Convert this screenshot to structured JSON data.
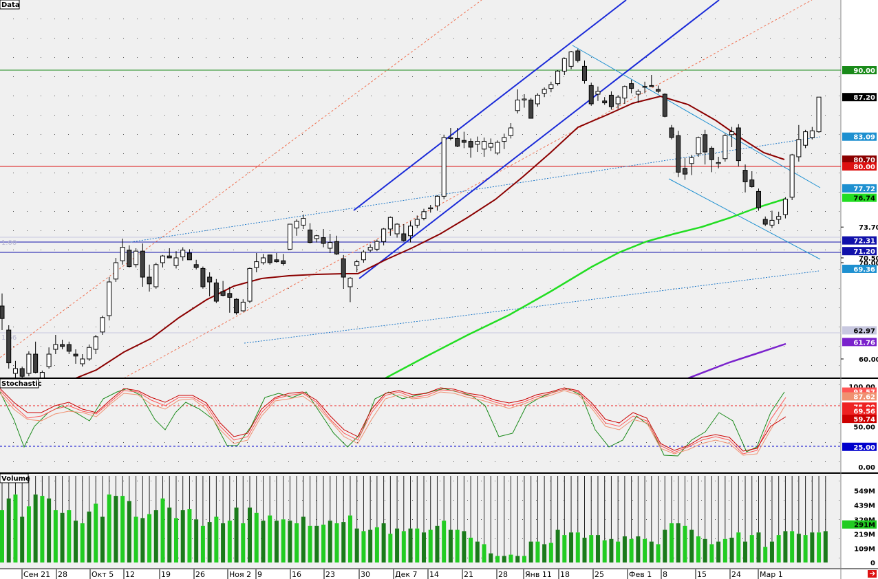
{
  "panels": {
    "price": {
      "title": "Data"
    },
    "stochastic": {
      "title": "Stochastic"
    },
    "volume": {
      "title": "Volume"
    }
  },
  "chart_data": {
    "type": "candlestick",
    "price_axis": {
      "ticks": [
        "90.00",
        "87.20",
        "83.09",
        "80.70",
        "80.00",
        "77.72",
        "76.74",
        "73.70",
        "72.31",
        "71.20",
        "70.50",
        "70.00",
        "69.36",
        "62.97",
        "61.76",
        "60.00"
      ],
      "badges": [
        {
          "label": "90.00",
          "value": 90.0,
          "bg": "#1a8a1a",
          "fg": "#ffffff"
        },
        {
          "label": "87.20",
          "value": 87.2,
          "bg": "#000000",
          "fg": "#ffffff"
        },
        {
          "label": "83.09",
          "value": 83.09,
          "bg": "#1e90d0",
          "fg": "#ffffff"
        },
        {
          "label": "80.70",
          "value": 80.7,
          "bg": "#8b0000",
          "fg": "#ffffff"
        },
        {
          "label": "80.00",
          "value": 80.0,
          "bg": "#dd1111",
          "fg": "#ffffff"
        },
        {
          "label": "77.72",
          "value": 77.72,
          "bg": "#1e90d0",
          "fg": "#ffffff"
        },
        {
          "label": "76.74",
          "value": 76.74,
          "bg": "#22dd22",
          "fg": "#000000"
        },
        {
          "label": "72.31",
          "value": 72.31,
          "bg": "#1111aa",
          "fg": "#ffffff"
        },
        {
          "label": "71.20",
          "value": 71.2,
          "bg": "#1111aa",
          "fg": "#ffffff"
        },
        {
          "label": "69.36",
          "value": 69.36,
          "bg": "#1e90d0",
          "fg": "#ffffff"
        },
        {
          "label": "62.97",
          "value": 62.97,
          "bg": "#c8c8e0",
          "fg": "#000000"
        },
        {
          "label": "61.76",
          "value": 61.76,
          "bg": "#7a22cc",
          "fg": "#ffffff"
        }
      ],
      "plain_ticks": [
        {
          "label": "60.00",
          "value": 60.0
        },
        {
          "label": "73.70",
          "value": 73.7
        },
        {
          "label": "70.50",
          "value": 70.5
        },
        {
          "label": "70.00",
          "value": 70.0
        }
      ],
      "faint_labels": [
        "1.00",
        "1.56"
      ]
    },
    "x_labels": [
      "Сен 21",
      "28",
      "Окт 5",
      "12",
      "19",
      "26",
      "Ноя 2",
      "9",
      "16",
      "23",
      "30",
      "Дек 7",
      "14",
      "21",
      "28",
      "Янв 11",
      "18",
      "25",
      "Фев 1",
      "8",
      "15",
      "24",
      "Мар 1"
    ],
    "candles": [
      [
        65.5,
        66.8,
        63.0,
        64.2
      ],
      [
        63.0,
        63.5,
        59.0,
        59.6
      ],
      [
        58.5,
        59.8,
        57.3,
        59.0
      ],
      [
        59.0,
        59.2,
        57.5,
        58.2
      ],
      [
        58.5,
        60.8,
        58.2,
        60.5
      ],
      [
        60.5,
        61.8,
        58.5,
        58.6
      ],
      [
        58.0,
        58.8,
        57.0,
        58.6
      ],
      [
        59.2,
        61.2,
        59.0,
        60.5
      ],
      [
        61.0,
        62.5,
        60.5,
        61.5
      ],
      [
        61.5,
        62.0,
        61.0,
        61.3
      ],
      [
        61.5,
        61.8,
        60.5,
        60.8
      ],
      [
        60.5,
        61.0,
        59.5,
        60.3
      ],
      [
        59.5,
        60.5,
        59.2,
        60.0
      ],
      [
        60.0,
        61.5,
        59.8,
        61.2
      ],
      [
        61.0,
        62.5,
        60.5,
        62.3
      ],
      [
        62.8,
        64.5,
        62.5,
        64.3
      ],
      [
        64.5,
        68.5,
        64.0,
        68.0
      ],
      [
        68.3,
        70.5,
        68.0,
        70.0
      ],
      [
        70.2,
        72.5,
        69.8,
        71.6
      ],
      [
        71.3,
        71.8,
        69.5,
        69.6
      ],
      [
        69.8,
        71.5,
        69.5,
        71.2
      ],
      [
        71.2,
        72.0,
        67.5,
        68.5
      ],
      [
        68.5,
        69.8,
        67.0,
        67.8
      ],
      [
        67.5,
        70.0,
        67.3,
        69.8
      ],
      [
        70.0,
        70.8,
        69.5,
        70.7
      ],
      [
        70.7,
        71.5,
        70.5,
        70.5
      ],
      [
        69.7,
        71.2,
        69.4,
        70.5
      ],
      [
        70.6,
        71.6,
        70.2,
        71.3
      ],
      [
        71.0,
        71.4,
        70.3,
        70.3
      ],
      [
        69.8,
        70.3,
        69.3,
        69.5
      ],
      [
        69.4,
        69.6,
        67.3,
        67.5
      ],
      [
        68.5,
        69.0,
        66.5,
        68.0
      ],
      [
        67.9,
        68.3,
        65.8,
        66.0
      ],
      [
        67.0,
        68.1,
        66.5,
        66.6
      ],
      [
        66.8,
        67.5,
        64.8,
        66.4
      ],
      [
        66.2,
        66.3,
        64.6,
        64.8
      ],
      [
        65.0,
        66.2,
        64.9,
        65.9
      ],
      [
        66.0,
        69.5,
        65.8,
        69.4
      ],
      [
        69.5,
        71.0,
        69.0,
        70.1
      ],
      [
        70.0,
        70.9,
        69.8,
        70.5
      ],
      [
        70.8,
        70.8,
        69.8,
        70.0
      ],
      [
        70.3,
        71.0,
        70.0,
        70.1
      ],
      [
        70.2,
        70.9,
        69.7,
        69.9
      ],
      [
        71.4,
        74.0,
        71.3,
        74.0
      ],
      [
        73.6,
        74.5,
        72.8,
        74.3
      ],
      [
        73.9,
        75.0,
        73.5,
        74.6
      ],
      [
        73.4,
        74.1,
        72.0,
        72.1
      ],
      [
        72.5,
        72.9,
        72.1,
        72.8
      ],
      [
        72.6,
        73.5,
        71.6,
        72.0
      ],
      [
        71.5,
        73.0,
        71.0,
        72.1
      ],
      [
        72.2,
        72.8,
        70.8,
        70.9
      ],
      [
        70.4,
        70.8,
        67.3,
        68.5
      ],
      [
        67.5,
        68.5,
        65.9,
        68.4
      ],
      [
        69.7,
        70.3,
        69.0,
        70.1
      ],
      [
        70.3,
        71.3,
        70.0,
        71.1
      ],
      [
        71.3,
        71.9,
        71.1,
        71.6
      ],
      [
        71.4,
        72.4,
        71.2,
        72.2
      ],
      [
        72.2,
        73.6,
        71.8,
        73.5
      ],
      [
        73.5,
        74.8,
        72.8,
        74.7
      ],
      [
        73.0,
        74.1,
        72.6,
        74.0
      ],
      [
        73.0,
        74.0,
        72.2,
        72.3
      ],
      [
        72.8,
        74.3,
        72.1,
        73.8
      ],
      [
        73.9,
        74.9,
        73.6,
        74.5
      ],
      [
        74.6,
        75.6,
        74.4,
        75.3
      ],
      [
        75.6,
        76.0,
        75.2,
        75.7
      ],
      [
        75.9,
        77.0,
        75.4,
        76.9
      ],
      [
        76.9,
        83.3,
        76.6,
        83.0
      ],
      [
        82.9,
        84.0,
        82.7,
        83.0
      ],
      [
        82.9,
        84.0,
        82.0,
        82.1
      ],
      [
        82.7,
        83.6,
        81.9,
        82.5
      ],
      [
        82.6,
        82.9,
        80.9,
        82.0
      ],
      [
        82.3,
        83.1,
        81.5,
        82.6
      ],
      [
        81.8,
        83.0,
        81.0,
        82.6
      ],
      [
        82.0,
        82.9,
        81.6,
        82.4
      ],
      [
        81.4,
        82.7,
        81.2,
        82.5
      ],
      [
        82.6,
        83.4,
        81.8,
        83.0
      ],
      [
        83.2,
        84.5,
        82.9,
        84.0
      ],
      [
        85.8,
        88.0,
        85.5,
        86.9
      ],
      [
        86.9,
        87.5,
        86.1,
        87.0
      ],
      [
        86.9,
        87.1,
        85.0,
        85.0
      ],
      [
        86.5,
        87.6,
        86.2,
        87.4
      ],
      [
        87.6,
        88.2,
        87.2,
        88.0
      ],
      [
        88.1,
        88.8,
        87.7,
        88.5
      ],
      [
        88.6,
        90.0,
        88.4,
        89.9
      ],
      [
        89.9,
        91.3,
        89.5,
        91.2
      ],
      [
        90.4,
        92.0,
        90.1,
        91.9
      ],
      [
        92.0,
        92.2,
        90.8,
        91.0
      ],
      [
        90.4,
        91.0,
        88.6,
        88.9
      ],
      [
        88.4,
        88.7,
        86.3,
        86.5
      ],
      [
        87.5,
        88.3,
        86.8,
        87.8
      ],
      [
        86.8,
        87.2,
        86.4,
        86.6
      ],
      [
        87.4,
        87.8,
        85.9,
        86.2
      ],
      [
        86.5,
        87.4,
        86.0,
        87.2
      ],
      [
        87.1,
        88.4,
        86.5,
        88.3
      ],
      [
        88.6,
        89.0,
        87.6,
        88.1
      ],
      [
        87.5,
        88.0,
        86.6,
        87.8
      ],
      [
        88.3,
        88.8,
        87.6,
        88.3
      ],
      [
        88.4,
        89.5,
        88.3,
        88.3
      ],
      [
        88.0,
        88.4,
        87.6,
        87.8
      ],
      [
        87.5,
        87.6,
        85.1,
        85.2
      ],
      [
        84.0,
        84.3,
        82.8,
        83.0
      ],
      [
        83.2,
        83.7,
        78.9,
        79.4
      ],
      [
        79.8,
        80.9,
        78.6,
        79.2
      ],
      [
        80.3,
        81.2,
        79.1,
        80.9
      ],
      [
        81.3,
        83.1,
        81.0,
        83.0
      ],
      [
        83.3,
        83.8,
        80.2,
        81.5
      ],
      [
        81.9,
        82.1,
        79.4,
        80.7
      ],
      [
        80.3,
        81.0,
        79.8,
        80.4
      ],
      [
        80.8,
        83.4,
        80.5,
        83.2
      ],
      [
        83.3,
        84.1,
        82.0,
        83.6
      ],
      [
        84.0,
        84.4,
        80.0,
        80.6
      ],
      [
        79.6,
        80.2,
        77.3,
        78.4
      ],
      [
        78.6,
        79.5,
        77.8,
        77.9
      ],
      [
        77.4,
        77.7,
        75.4,
        75.7
      ],
      [
        74.5,
        74.8,
        73.8,
        74.0
      ],
      [
        73.9,
        75.4,
        73.6,
        74.4
      ],
      [
        74.5,
        75.3,
        74.0,
        74.8
      ],
      [
        75.0,
        76.8,
        74.6,
        76.6
      ],
      [
        76.8,
        81.3,
        76.5,
        81.2
      ],
      [
        81.0,
        84.3,
        80.5,
        82.8
      ],
      [
        82.2,
        83.8,
        81.9,
        83.6
      ],
      [
        83.0,
        84.1,
        82.8,
        83.7
      ],
      [
        83.6,
        87.2,
        83.5,
        87.2
      ]
    ],
    "stochastic_axis": {
      "ticks": [
        "100.00",
        "50.00",
        "25.00",
        "0.00"
      ],
      "badges": [
        {
          "label": "93.57",
          "bg": "#ff5555",
          "fg": "#ffffff"
        },
        {
          "label": "87.62",
          "bg": "#f09070",
          "fg": "#ffffff"
        },
        {
          "label": "75.00",
          "bg": "#ee2222",
          "fg": "#ffffff"
        },
        {
          "label": "69.56",
          "bg": "#ee2222",
          "fg": "#ffffff"
        },
        {
          "label": "59.74",
          "bg": "#cc0000",
          "fg": "#ffffff"
        },
        {
          "label": "25.00",
          "bg": "#0000cc",
          "fg": "#ffffff"
        }
      ]
    },
    "volume_axis": {
      "ticks": [
        "549M",
        "439M",
        "329M",
        "219M",
        "109M",
        "0"
      ],
      "badges": [
        {
          "label": "291M",
          "bg": "#22cc22",
          "fg": "#000000"
        }
      ]
    }
  }
}
